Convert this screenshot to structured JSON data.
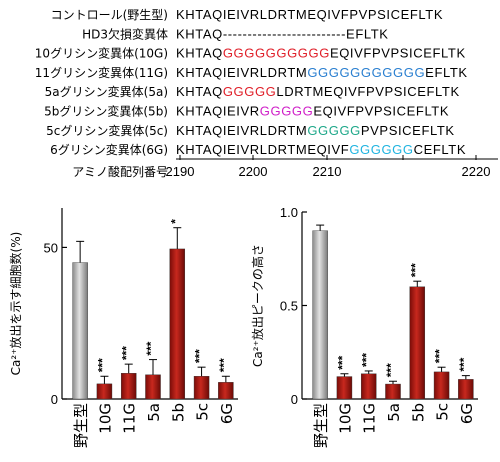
{
  "alignment": {
    "rows": [
      {
        "label": "コントロール(野生型)",
        "segments": [
          {
            "text": "KHTAQIEIVRLDRTMEQIVFPVPSICEFLTK",
            "color": "#000000"
          }
        ]
      },
      {
        "label": "HD3欠損変異体",
        "segments": [
          {
            "text": "KHTAQ-------------------------EFLTK",
            "color": "#000000"
          }
        ]
      },
      {
        "label": "10グリシン変異体(10G)",
        "segments": [
          {
            "text": "KHTAQ",
            "color": "#000000"
          },
          {
            "text": "GGGGGGGGGG",
            "color": "#e0202a"
          },
          {
            "text": "EQIVFPVPSICEFLTK",
            "color": "#000000"
          }
        ]
      },
      {
        "label": "11グリシン変異体(11G)",
        "segments": [
          {
            "text": "KHTAQIEIVRLDRTM",
            "color": "#000000"
          },
          {
            "text": "GGGGGGGGGGG",
            "color": "#2a7fd0"
          },
          {
            "text": "EFLTK",
            "color": "#000000"
          }
        ]
      },
      {
        "label": "5aグリシン変異体(5a)",
        "segments": [
          {
            "text": "KHTAQ",
            "color": "#000000"
          },
          {
            "text": "GGGGG",
            "color": "#e0202a"
          },
          {
            "text": "LDRTMEQIVFPVPSICEFLTK",
            "color": "#000000"
          }
        ]
      },
      {
        "label": "5bグリシン変異体(5b)",
        "segments": [
          {
            "text": "KHTAQIEIVR",
            "color": "#000000"
          },
          {
            "text": "GGGGG",
            "color": "#d020c8"
          },
          {
            "text": "EQIVFPVPSICEFLTK",
            "color": "#000000"
          }
        ]
      },
      {
        "label": "5cグリシン変異体(5c)",
        "segments": [
          {
            "text": "KHTAQIEIVRLDRTM",
            "color": "#000000"
          },
          {
            "text": "GGGGG",
            "color": "#1fa88a"
          },
          {
            "text": "PVPSICEFLTK",
            "color": "#000000"
          }
        ]
      },
      {
        "label": "6グリシン変異体(6G)",
        "segments": [
          {
            "text": "KHTAQIEIVRLDRTMEQIVF",
            "color": "#000000"
          },
          {
            "text": "GGGGGG",
            "color": "#20b4e0"
          },
          {
            "text": "CEFLTK",
            "color": "#000000"
          }
        ]
      }
    ],
    "axis_label": "アミノ酸配列番号",
    "axis_ticks": [
      "2190",
      "2200",
      "2210",
      "2220"
    ]
  },
  "chart_data": [
    {
      "type": "bar",
      "ylabel": "Ca²⁺放出を示す細胞数(%)",
      "ylim": [
        0,
        63
      ],
      "yticks": [
        "0",
        "50"
      ],
      "categories": [
        "野生型",
        "10G",
        "11G",
        "5a",
        "5b",
        "5c",
        "6G"
      ],
      "values": [
        45,
        5,
        8.5,
        8,
        49.5,
        7.5,
        5.5
      ],
      "errors": [
        7,
        2.5,
        3,
        5,
        7,
        3,
        2
      ],
      "significance": [
        "",
        "***",
        "***",
        "***",
        "*",
        "***",
        "***"
      ],
      "colors": {
        "control": "#a8a8a8",
        "mutant": "#b01812"
      }
    },
    {
      "type": "bar",
      "ylabel": "Ca²⁺放出ピークの高さ",
      "ylim": [
        0,
        1.0
      ],
      "yticks": [
        "0",
        "0.5",
        "1.0"
      ],
      "categories": [
        "野生型",
        "10G",
        "11G",
        "5a",
        "5b",
        "5c",
        "6G"
      ],
      "values": [
        0.9,
        0.12,
        0.135,
        0.08,
        0.6,
        0.145,
        0.105
      ],
      "errors": [
        0.03,
        0.015,
        0.015,
        0.015,
        0.03,
        0.025,
        0.02
      ],
      "significance": [
        "",
        "***",
        "***",
        "***",
        "***",
        "***",
        "***"
      ],
      "colors": {
        "control": "#a8a8a8",
        "mutant": "#b01812"
      }
    }
  ]
}
